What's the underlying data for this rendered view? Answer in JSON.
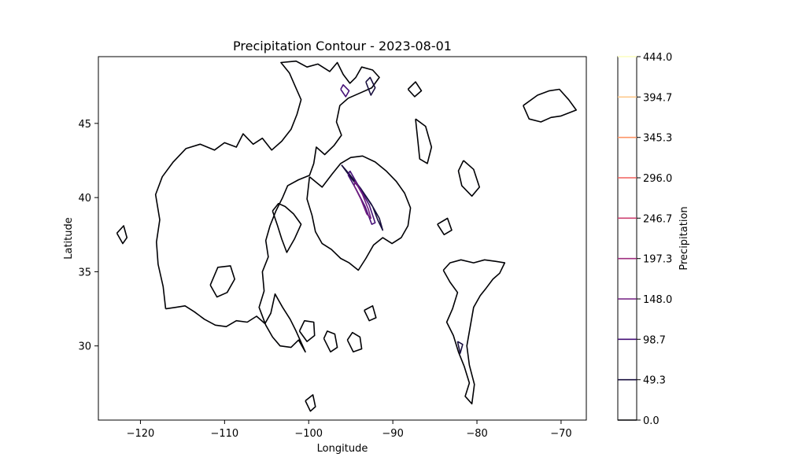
{
  "chart_data": {
    "type": "contour",
    "title": "Precipitation Contour - 2023-08-01",
    "xlabel": "Longitude",
    "ylabel": "Latitude",
    "xlim": [
      -125,
      -67
    ],
    "ylim": [
      25,
      49.5
    ],
    "xticks": [
      -120,
      -110,
      -100,
      -90,
      -80,
      -70
    ],
    "xtick_labels": [
      "−120",
      "−110",
      "−100",
      "−90",
      "−80",
      "−70"
    ],
    "yticks": [
      30,
      35,
      40,
      45
    ],
    "ytick_labels": [
      "30",
      "35",
      "40",
      "45"
    ],
    "grid": false,
    "colorbar": {
      "label": "Precipitation",
      "levels": [
        0.0,
        49.3,
        98.7,
        148.0,
        197.3,
        246.7,
        296.0,
        345.3,
        394.7,
        444.0
      ],
      "level_labels": [
        "0.0",
        "49.3",
        "98.7",
        "148.0",
        "197.3",
        "246.7",
        "296.0",
        "345.3",
        "394.7",
        "444.0"
      ],
      "colors": [
        "#000004",
        "#180f3e",
        "#451077",
        "#721f81",
        "#9f2f7f",
        "#cd4071",
        "#f1605d",
        "#fd9567",
        "#fec98d",
        "#fcfdbf"
      ]
    },
    "contours": [
      {
        "level": 0.0,
        "paths": [
          [
            [
              -117,
              32.5
            ],
            [
              -117.3,
              34
            ],
            [
              -117.9,
              35.5
            ],
            [
              -118.1,
              37
            ],
            [
              -117.7,
              38.5
            ],
            [
              -118.2,
              40.2
            ],
            [
              -117.4,
              41.4
            ],
            [
              -116.1,
              42.4
            ],
            [
              -114.6,
              43.3
            ],
            [
              -112.9,
              43.6
            ],
            [
              -111.2,
              43.2
            ],
            [
              -110,
              43.7
            ],
            [
              -108.6,
              43.4
            ],
            [
              -107.8,
              44.3
            ],
            [
              -106.6,
              43.6
            ],
            [
              -105.5,
              44
            ],
            [
              -104.4,
              43.2
            ],
            [
              -103.2,
              43.8
            ],
            [
              -102.1,
              44.6
            ],
            [
              -101.4,
              45.6
            ],
            [
              -100.9,
              46.6
            ],
            [
              -101.6,
              47.5
            ],
            [
              -102.3,
              48.4
            ],
            [
              -103.3,
              49.1
            ],
            [
              -101.5,
              49.2
            ],
            [
              -100.2,
              48.8
            ],
            [
              -98.9,
              49
            ],
            [
              -97.5,
              48.5
            ],
            [
              -96.6,
              49.1
            ],
            [
              -95.9,
              48.3
            ],
            [
              -95.1,
              47.7
            ],
            [
              -94.4,
              48.1
            ],
            [
              -93.7,
              48.8
            ],
            [
              -92.4,
              48.6
            ],
            [
              -91.6,
              48.1
            ],
            [
              -92.5,
              47.4
            ],
            [
              -93.7,
              47.1
            ],
            [
              -95.3,
              46.7
            ],
            [
              -96.3,
              46.2
            ],
            [
              -96.7,
              45.1
            ],
            [
              -96.1,
              44.2
            ],
            [
              -97,
              43.5
            ],
            [
              -98.1,
              42.9
            ],
            [
              -99.1,
              43.4
            ],
            [
              -99.4,
              42.3
            ],
            [
              -99.9,
              41.5
            ],
            [
              -101.2,
              41.2
            ],
            [
              -102.5,
              40.8
            ],
            [
              -103.1,
              40
            ],
            [
              -103.9,
              39.1
            ],
            [
              -104.6,
              38.1
            ],
            [
              -105.1,
              37.1
            ],
            [
              -104.8,
              36
            ],
            [
              -105.5,
              35
            ],
            [
              -105.3,
              33.7
            ],
            [
              -105.9,
              32.6
            ],
            [
              -105.1,
              31.4
            ],
            [
              -104.3,
              30.6
            ],
            [
              -103.4,
              30
            ],
            [
              -102.1,
              29.9
            ],
            [
              -101.2,
              30.4
            ],
            [
              -100.4,
              29.6
            ],
            [
              -101.5,
              31
            ],
            [
              -102.2,
              31.8
            ],
            [
              -103.1,
              32.6
            ],
            [
              -104,
              33.5
            ],
            [
              -104.5,
              32.2
            ],
            [
              -105.2,
              31.5
            ],
            [
              -106.2,
              32
            ],
            [
              -107.3,
              31.6
            ],
            [
              -108.6,
              31.7
            ],
            [
              -109.8,
              31.3
            ],
            [
              -111.1,
              31.4
            ],
            [
              -112.4,
              31.8
            ],
            [
              -113.6,
              32.3
            ],
            [
              -114.7,
              32.7
            ],
            [
              -115.8,
              32.6
            ],
            [
              -117,
              32.5
            ]
          ],
          [
            [
              -99.9,
              41.4
            ],
            [
              -98.4,
              40.7
            ],
            [
              -97.2,
              41.6
            ],
            [
              -96.2,
              42.3
            ],
            [
              -95,
              42.7
            ],
            [
              -93.6,
              42.8
            ],
            [
              -92.1,
              42.4
            ],
            [
              -90.8,
              41.8
            ],
            [
              -89.6,
              41.1
            ],
            [
              -88.6,
              40.3
            ],
            [
              -87.9,
              39.3
            ],
            [
              -88.2,
              38.1
            ],
            [
              -89,
              37.3
            ],
            [
              -90.1,
              36.9
            ],
            [
              -91.2,
              37.3
            ],
            [
              -92.3,
              36.8
            ],
            [
              -93.2,
              35.9
            ],
            [
              -94.1,
              35.1
            ],
            [
              -95.2,
              35.6
            ],
            [
              -96.2,
              35.9
            ],
            [
              -97.3,
              36.5
            ],
            [
              -98.4,
              36.9
            ],
            [
              -99.2,
              37.7
            ],
            [
              -99.6,
              38.8
            ],
            [
              -100.2,
              39.9
            ],
            [
              -99.9,
              41.4
            ]
          ],
          [
            [
              -104.3,
              39.1
            ],
            [
              -103.7,
              38.1
            ],
            [
              -103.2,
              37.2
            ],
            [
              -102.6,
              36.3
            ],
            [
              -101.7,
              37.2
            ],
            [
              -100.9,
              38.2
            ],
            [
              -101.8,
              38.9
            ],
            [
              -102.8,
              39.4
            ],
            [
              -103.6,
              39.6
            ],
            [
              -104.3,
              39.1
            ]
          ],
          [
            [
              -84,
              35.1
            ],
            [
              -83.2,
              34.3
            ],
            [
              -82.3,
              33.6
            ],
            [
              -82.9,
              32.5
            ],
            [
              -83.6,
              31.6
            ],
            [
              -82.8,
              30.7
            ],
            [
              -82.2,
              29.6
            ],
            [
              -81.5,
              28.6
            ],
            [
              -80.9,
              27.5
            ],
            [
              -81.4,
              26.6
            ],
            [
              -80.6,
              26.1
            ],
            [
              -80.3,
              27.4
            ],
            [
              -80.9,
              28.7
            ],
            [
              -81.2,
              30
            ],
            [
              -80.8,
              31.3
            ],
            [
              -80.4,
              32.6
            ],
            [
              -79.6,
              33.4
            ],
            [
              -78.9,
              33.9
            ],
            [
              -78.1,
              34.5
            ],
            [
              -77.3,
              34.9
            ],
            [
              -76.7,
              35.6
            ],
            [
              -77.8,
              35.7
            ],
            [
              -79.1,
              35.8
            ],
            [
              -80.4,
              35.6
            ],
            [
              -81.9,
              35.8
            ],
            [
              -83.2,
              35.6
            ],
            [
              -84,
              35.1
            ]
          ],
          [
            [
              -74.5,
              46.2
            ],
            [
              -73.8,
              45.3
            ],
            [
              -72.4,
              45.1
            ],
            [
              -71.2,
              45.4
            ],
            [
              -70,
              45.5
            ],
            [
              -68.2,
              45.9
            ],
            [
              -69.1,
              46.6
            ],
            [
              -70.2,
              47.3
            ],
            [
              -71.4,
              47.2
            ],
            [
              -72.8,
              46.9
            ],
            [
              -74.5,
              46.2
            ]
          ],
          [
            [
              -87.3,
              45.3
            ],
            [
              -86.1,
              44.8
            ],
            [
              -85.4,
              43.4
            ],
            [
              -85.9,
              42.3
            ],
            [
              -86.8,
              42.6
            ],
            [
              -87,
              43.7
            ],
            [
              -87.3,
              45.3
            ]
          ],
          [
            [
              -81.6,
              42.5
            ],
            [
              -80.4,
              41.9
            ],
            [
              -79.7,
              40.7
            ],
            [
              -80.6,
              40.1
            ],
            [
              -81.8,
              40.8
            ],
            [
              -82.2,
              41.8
            ],
            [
              -81.6,
              42.5
            ]
          ],
          [
            [
              -111.7,
              34.1
            ],
            [
              -110.9,
              33.3
            ],
            [
              -109.7,
              33.6
            ],
            [
              -108.8,
              34.5
            ],
            [
              -109.3,
              35.4
            ],
            [
              -110.8,
              35.3
            ],
            [
              -111.7,
              34.1
            ]
          ],
          [
            [
              -101.1,
              31
            ],
            [
              -100.2,
              30.3
            ],
            [
              -99.3,
              30.7
            ],
            [
              -99.4,
              31.6
            ],
            [
              -100.5,
              31.7
            ],
            [
              -101.1,
              31
            ]
          ],
          [
            [
              -95.4,
              30.4
            ],
            [
              -94.7,
              29.6
            ],
            [
              -93.7,
              29.8
            ],
            [
              -93.9,
              30.6
            ],
            [
              -94.8,
              30.9
            ],
            [
              -95.4,
              30.4
            ]
          ],
          [
            [
              -98.2,
              30.5
            ],
            [
              -97.4,
              29.6
            ],
            [
              -96.6,
              29.9
            ],
            [
              -96.9,
              30.8
            ],
            [
              -97.8,
              31
            ],
            [
              -98.2,
              30.5
            ]
          ],
          [
            [
              -100.4,
              26.3
            ],
            [
              -99.8,
              25.6
            ],
            [
              -99.2,
              25.9
            ],
            [
              -99.5,
              26.7
            ],
            [
              -100.4,
              26.3
            ]
          ],
          [
            [
              -93.4,
              32.4
            ],
            [
              -92.8,
              31.7
            ],
            [
              -92,
              31.9
            ],
            [
              -92.4,
              32.7
            ],
            [
              -93.4,
              32.4
            ]
          ],
          [
            [
              -84.7,
              38.2
            ],
            [
              -83.9,
              37.5
            ],
            [
              -83,
              37.8
            ],
            [
              -83.5,
              38.6
            ],
            [
              -84.7,
              38.2
            ]
          ],
          [
            [
              -122.8,
              37.6
            ],
            [
              -122.1,
              36.9
            ],
            [
              -121.6,
              37.3
            ],
            [
              -122,
              38.1
            ],
            [
              -122.8,
              37.6
            ]
          ],
          [
            [
              -88.2,
              47.3
            ],
            [
              -87.4,
              46.8
            ],
            [
              -86.6,
              47.2
            ],
            [
              -87.3,
              47.8
            ],
            [
              -88.2,
              47.3
            ]
          ]
        ]
      },
      {
        "level": 49.3,
        "paths": [
          [
            [
              -96.1,
              42.2
            ],
            [
              -94.8,
              41.2
            ],
            [
              -93.6,
              40.4
            ],
            [
              -92.4,
              39.4
            ],
            [
              -91.8,
              38.5
            ],
            [
              -91.2,
              37.8
            ],
            [
              -91.6,
              38.6
            ],
            [
              -92.6,
              39.6
            ],
            [
              -93.8,
              40.6
            ],
            [
              -95.2,
              41.6
            ],
            [
              -96.1,
              42.2
            ]
          ],
          [
            [
              -93.2,
              47.8
            ],
            [
              -92.6,
              46.9
            ],
            [
              -92.1,
              47.4
            ],
            [
              -92.7,
              48.1
            ],
            [
              -93.2,
              47.8
            ]
          ],
          [
            [
              -82.3,
              30.3
            ],
            [
              -82,
              29.5
            ],
            [
              -81.7,
              30.1
            ],
            [
              -82.3,
              30.3
            ]
          ]
        ]
      },
      {
        "level": 98.7,
        "paths": [
          [
            [
              -95.1,
              41.8
            ],
            [
              -94,
              40.7
            ],
            [
              -92.8,
              39.5
            ],
            [
              -92.1,
              38.3
            ],
            [
              -92.5,
              38.2
            ],
            [
              -93.3,
              39.4
            ],
            [
              -94.4,
              40.6
            ],
            [
              -95.3,
              41.5
            ],
            [
              -95.1,
              41.8
            ]
          ],
          [
            [
              -96.2,
              47.3
            ],
            [
              -95.6,
              46.8
            ],
            [
              -95.2,
              47.2
            ],
            [
              -95.9,
              47.6
            ],
            [
              -96.2,
              47.3
            ]
          ]
        ]
      },
      {
        "level": 148.0,
        "paths": [
          [
            [
              -94.5,
              41.1
            ],
            [
              -93.6,
              40.2
            ],
            [
              -92.9,
              39.2
            ],
            [
              -92.6,
              38.6
            ],
            [
              -93.1,
              38.9
            ],
            [
              -93.8,
              39.9
            ],
            [
              -94.6,
              40.8
            ],
            [
              -94.5,
              41.1
            ]
          ]
        ]
      }
    ]
  }
}
